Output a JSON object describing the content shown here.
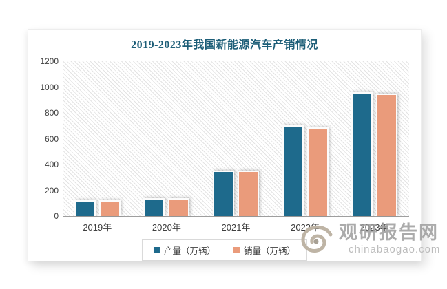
{
  "title": "2019-2023年我国新能源汽车产销情况",
  "chart_data": {
    "type": "bar",
    "title": "2019-2023年我国新能源汽车产销情况",
    "categories": [
      "2019年",
      "2020年",
      "2021年",
      "2022年",
      "2023年"
    ],
    "series": [
      {
        "name": "产量（万辆）",
        "color": "#1e6a8c",
        "values": [
          124.2,
          136.6,
          354.5,
          705.8,
          958.7
        ]
      },
      {
        "name": "销量（万辆）",
        "color": "#ea9b7b",
        "values": [
          120.6,
          136.7,
          352.1,
          688.7,
          949.5
        ]
      }
    ],
    "ylim": [
      0,
      1200
    ],
    "yticks": [
      0,
      200,
      400,
      600,
      800,
      1000,
      1200
    ],
    "xlabel": "",
    "ylabel": "",
    "grid": false,
    "legend_position": "bottom",
    "plot_background": "diagonal-hatch"
  },
  "colors": {
    "title_text": "#1d5e78",
    "axis_line": "#9e9e9e",
    "tick_text": "#3f3f3f",
    "hatch_line": "#e3e3e3",
    "box_border": "#ededed",
    "legend_border": "#d9d9d9",
    "watermark_text": "#9d9d9d",
    "watermark_url_text": "#b5b5b5",
    "watermark_logo": "#beb4a5"
  },
  "watermark": {
    "logo": "swirl-logo-icon",
    "site_name": "观研报告网",
    "site_url": "chinabaogao.com"
  }
}
